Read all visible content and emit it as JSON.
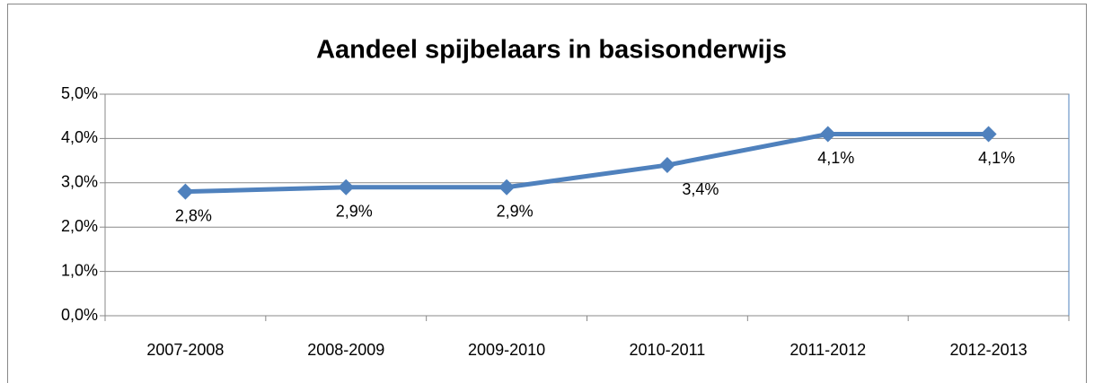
{
  "chart_data": {
    "type": "line",
    "title": "Aandeel spijbelaars in basisonderwijs",
    "categories": [
      "2007-2008",
      "2008-2009",
      "2009-2010",
      "2010-2011",
      "2011-2012",
      "2012-2013"
    ],
    "series": [
      {
        "color": "#4f81bd",
        "values": [
          2.8,
          2.9,
          2.9,
          3.4,
          4.1,
          4.1
        ],
        "value_labels": [
          "2,8%",
          "2,9%",
          "2,9%",
          "3,4%",
          "4,1%",
          "4,1%"
        ]
      }
    ],
    "ylim": [
      0,
      5
    ],
    "yticks": [
      {
        "value": 0,
        "label": "0,0%"
      },
      {
        "value": 1,
        "label": "1,0%"
      },
      {
        "value": 2,
        "label": "2,0%"
      },
      {
        "value": 3,
        "label": "3,0%"
      },
      {
        "value": 4,
        "label": "4,0%"
      },
      {
        "value": 5,
        "label": "5,0%"
      }
    ],
    "grid": true
  }
}
